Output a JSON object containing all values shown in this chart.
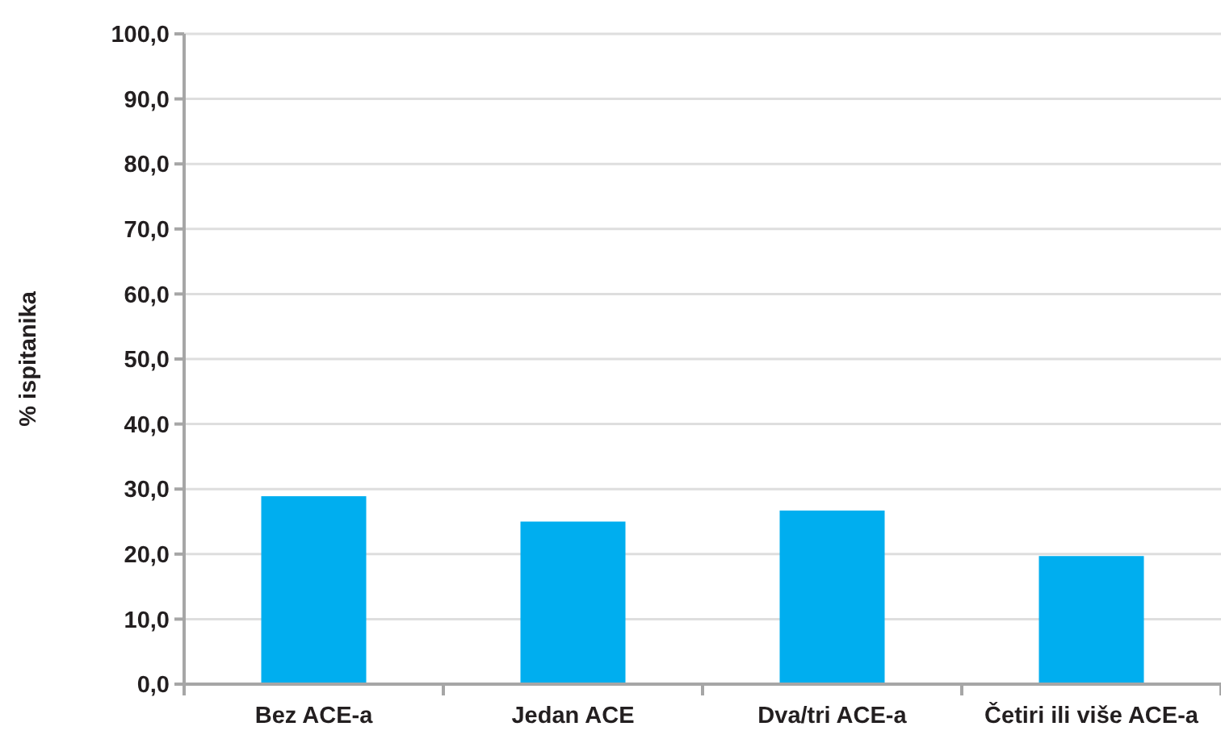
{
  "chart_data": {
    "type": "bar",
    "ylabel": "% ispitanika",
    "categories": [
      "Bez ACE-a",
      "Jedan ACE",
      "Dva/tri ACE-a",
      "Četiri ili više ACE-a"
    ],
    "values": [
      28.9,
      25.0,
      26.7,
      19.7
    ],
    "color": "#00aeef",
    "ylim": [
      0,
      100
    ],
    "yticks": [
      {
        "value": 0,
        "label": "0,0"
      },
      {
        "value": 10,
        "label": "10,0"
      },
      {
        "value": 20,
        "label": "20,0"
      },
      {
        "value": 30,
        "label": "30,0"
      },
      {
        "value": 40,
        "label": "40,0"
      },
      {
        "value": 50,
        "label": "50,0"
      },
      {
        "value": 60,
        "label": "60,0"
      },
      {
        "value": 70,
        "label": "70,0"
      },
      {
        "value": 80,
        "label": "80,0"
      },
      {
        "value": 90,
        "label": "90,0"
      },
      {
        "value": 100,
        "label": "100,0"
      }
    ],
    "grid": "y"
  }
}
